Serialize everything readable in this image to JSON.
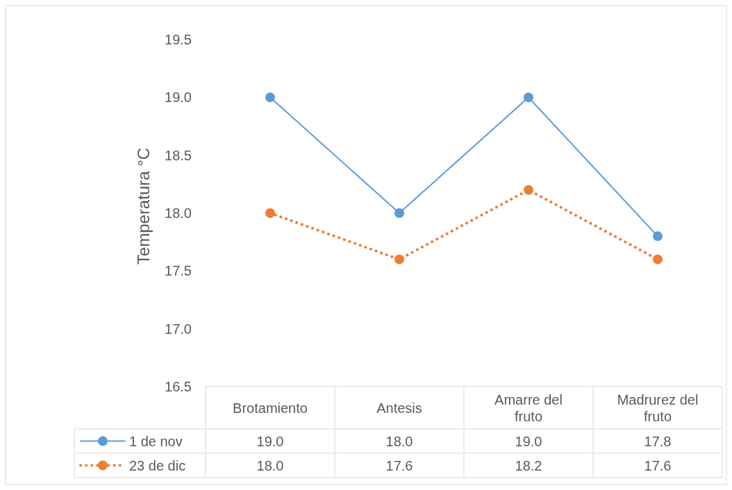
{
  "chart_data": {
    "type": "line",
    "ylabel": "Temperatura °C",
    "categories": [
      "Brotamiento",
      "Antesis",
      "Amarre del fruto",
      "Madrurez del fruto"
    ],
    "series": [
      {
        "name": "1 de nov",
        "color": "#5b9bd5",
        "values": [
          19.0,
          18.0,
          19.0,
          17.8
        ],
        "value_labels": [
          "19.0",
          "18.0",
          "19.0",
          "17.8"
        ],
        "marker": "circle",
        "line_style": "solid"
      },
      {
        "name": "23 de dic",
        "color": "#ed7d31",
        "values": [
          18.0,
          17.6,
          18.2,
          17.6
        ],
        "value_labels": [
          "18.0",
          "17.6",
          "18.2",
          "17.6"
        ],
        "marker": "circle",
        "line_style": "dotted"
      }
    ],
    "ylim": [
      16.5,
      19.5
    ],
    "yticks": [
      16.5,
      {
        "value": 17,
        "label": "17.0"
      },
      17.5,
      {
        "value": 18,
        "label": "18.0"
      },
      18.5,
      {
        "value": 19,
        "label": "19.0"
      },
      19.5
    ],
    "grid": false,
    "legend": "bottom"
  }
}
